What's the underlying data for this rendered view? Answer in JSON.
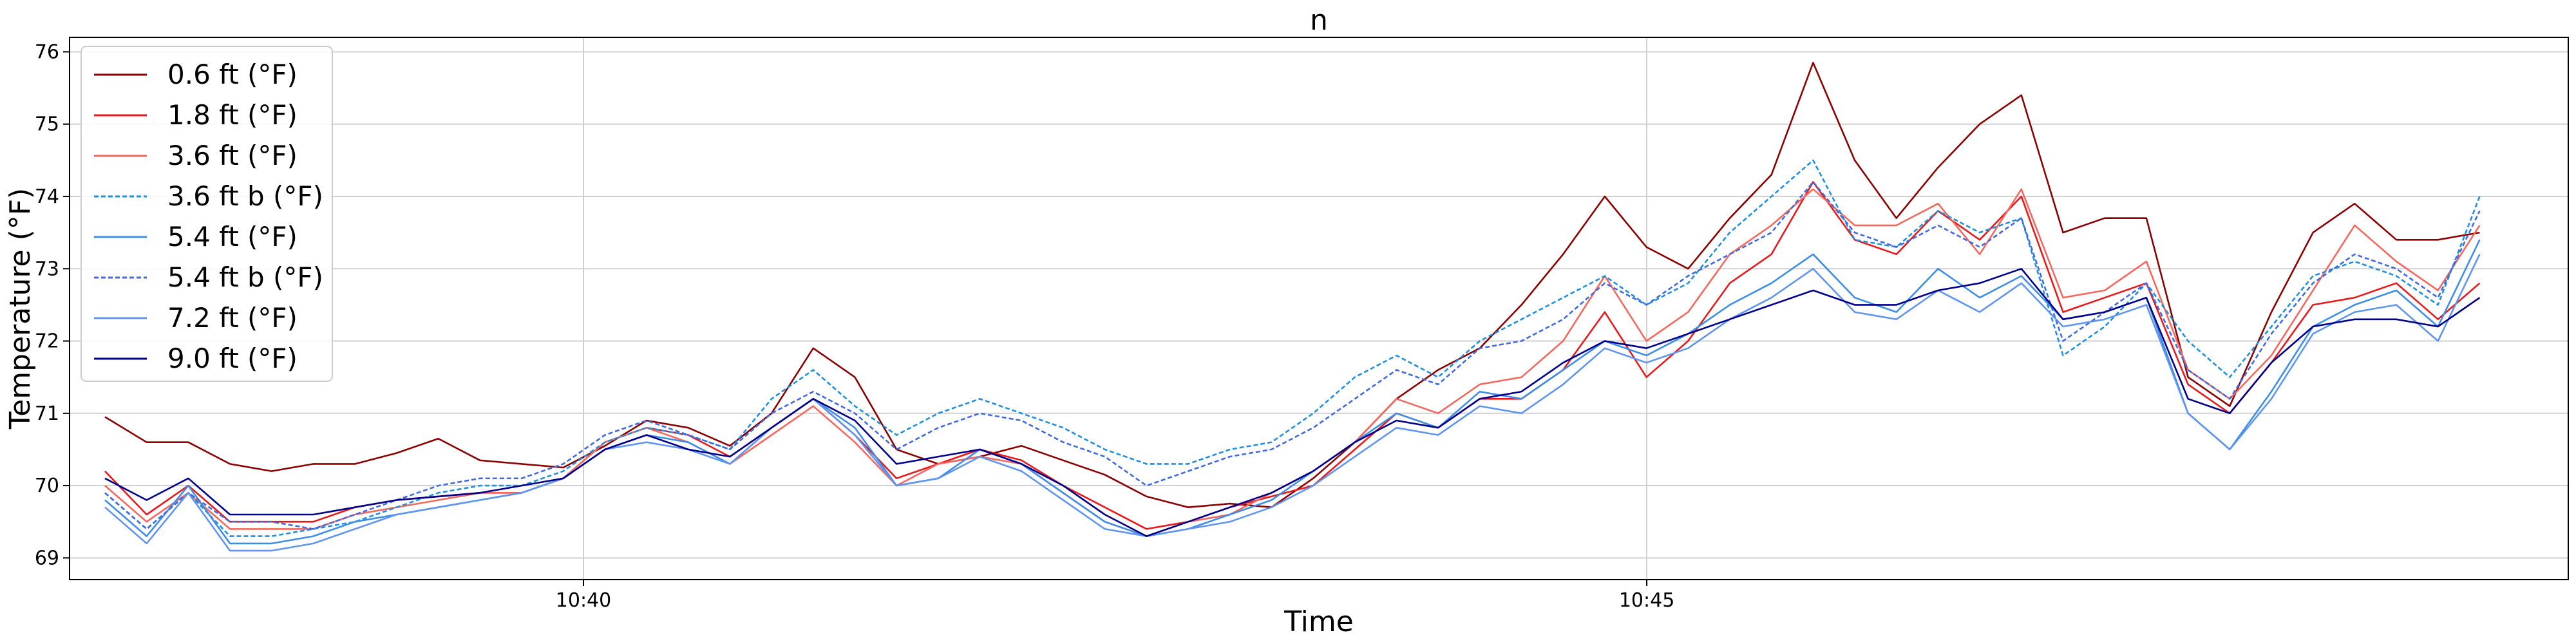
{
  "chart_data": {
    "type": "line",
    "title": "n",
    "xlabel": "Time",
    "ylabel": "Temperature (°F)",
    "xticks": [
      "10:40",
      "10:45"
    ],
    "x_start": "10:37:45",
    "x_end": "10:48:55",
    "xlim": [
      "10:37:35",
      "10:49:20"
    ],
    "ylim": [
      68.7,
      76.2
    ],
    "yticks": [
      69,
      70,
      71,
      72,
      73,
      74,
      75,
      76
    ],
    "grid": true,
    "legend_placement": "top-left",
    "series": [
      {
        "name": "0.6 ft (°F)",
        "color": "#8b0000",
        "style": "solid",
        "values": [
          70.95,
          70.6,
          70.6,
          70.3,
          70.2,
          70.3,
          70.3,
          70.45,
          70.65,
          70.35,
          70.3,
          70.25,
          70.55,
          70.9,
          70.8,
          70.55,
          71.0,
          71.9,
          71.5,
          70.5,
          70.3,
          70.4,
          70.55,
          70.35,
          70.15,
          69.85,
          69.7,
          69.75,
          69.7,
          70.1,
          70.6,
          71.2,
          71.6,
          71.9,
          72.5,
          73.2,
          74.0,
          73.3,
          73.0,
          73.7,
          74.3,
          75.85,
          74.5,
          73.7,
          74.4,
          75.0,
          75.4,
          73.5,
          73.7,
          73.7,
          71.5,
          71.1,
          72.4,
          73.5,
          73.9,
          73.4,
          73.4,
          73.5
        ]
      },
      {
        "name": "1.8 ft (°F)",
        "color": "#e8191b",
        "style": "solid",
        "values": [
          70.2,
          69.6,
          70.0,
          69.5,
          69.5,
          69.5,
          69.7,
          69.8,
          69.85,
          69.9,
          69.9,
          70.1,
          70.6,
          70.8,
          70.7,
          70.4,
          70.8,
          71.2,
          70.7,
          70.1,
          70.3,
          70.5,
          70.35,
          70.0,
          69.7,
          69.4,
          69.5,
          69.7,
          69.85,
          70.0,
          70.5,
          71.0,
          70.8,
          71.2,
          71.2,
          71.6,
          72.4,
          71.5,
          72.0,
          72.8,
          73.2,
          74.2,
          73.4,
          73.2,
          73.8,
          73.4,
          74.0,
          72.4,
          72.6,
          72.8,
          71.4,
          71.0,
          71.7,
          72.5,
          72.6,
          72.8,
          72.3,
          72.8
        ]
      },
      {
        "name": "3.6 ft (°F)",
        "color": "#f6685e",
        "style": "solid",
        "values": [
          70.0,
          69.5,
          69.9,
          69.4,
          69.4,
          69.4,
          69.6,
          69.7,
          69.8,
          69.9,
          69.9,
          70.1,
          70.6,
          70.8,
          70.6,
          70.3,
          70.7,
          71.1,
          70.6,
          70.0,
          70.3,
          70.4,
          70.3,
          69.9,
          69.5,
          69.3,
          69.5,
          69.6,
          69.9,
          70.2,
          70.6,
          71.2,
          71.0,
          71.4,
          71.5,
          72.0,
          72.9,
          72.0,
          72.4,
          73.2,
          73.6,
          74.1,
          73.6,
          73.6,
          73.9,
          73.2,
          74.1,
          72.6,
          72.7,
          73.1,
          71.6,
          71.2,
          71.8,
          72.7,
          73.6,
          73.1,
          72.7,
          73.6
        ]
      },
      {
        "name": "3.6 ft b (°F)",
        "color": "#1e90e0",
        "style": "dashed",
        "values": [
          69.9,
          69.4,
          69.9,
          69.3,
          69.3,
          69.4,
          69.5,
          69.7,
          69.9,
          70.0,
          70.0,
          70.2,
          70.6,
          70.8,
          70.7,
          70.5,
          71.2,
          71.6,
          71.1,
          70.7,
          71.0,
          71.2,
          71.0,
          70.8,
          70.5,
          70.3,
          70.3,
          70.5,
          70.6,
          71.0,
          71.5,
          71.8,
          71.5,
          72.0,
          72.3,
          72.6,
          72.9,
          72.5,
          72.8,
          73.5,
          74.0,
          74.5,
          73.4,
          73.3,
          73.8,
          73.5,
          73.7,
          71.8,
          72.2,
          72.8,
          72.0,
          71.5,
          72.2,
          72.9,
          73.1,
          72.9,
          72.5,
          74.0
        ]
      },
      {
        "name": "5.4 ft (°F)",
        "color": "#3c8ee6",
        "style": "solid",
        "values": [
          69.8,
          69.3,
          70.0,
          69.2,
          69.2,
          69.3,
          69.5,
          69.6,
          69.7,
          69.8,
          69.9,
          70.1,
          70.5,
          70.7,
          70.6,
          70.3,
          70.8,
          71.2,
          70.8,
          70.0,
          70.1,
          70.5,
          70.3,
          69.9,
          69.5,
          69.3,
          69.4,
          69.6,
          69.8,
          70.2,
          70.6,
          71.0,
          70.8,
          71.3,
          71.2,
          71.6,
          72.0,
          71.8,
          72.1,
          72.5,
          72.8,
          73.2,
          72.6,
          72.4,
          73.0,
          72.6,
          72.9,
          72.3,
          72.4,
          72.6,
          71.0,
          70.5,
          71.3,
          72.2,
          72.5,
          72.7,
          72.2,
          73.4
        ]
      },
      {
        "name": "5.4 ft b (°F)",
        "color": "#4169e1",
        "style": "dashed",
        "values": [
          69.9,
          69.4,
          69.9,
          69.5,
          69.5,
          69.4,
          69.6,
          69.8,
          70.0,
          70.1,
          70.1,
          70.3,
          70.7,
          70.9,
          70.7,
          70.5,
          71.0,
          71.3,
          71.0,
          70.5,
          70.8,
          71.0,
          70.9,
          70.6,
          70.4,
          70.0,
          70.2,
          70.4,
          70.5,
          70.8,
          71.2,
          71.6,
          71.4,
          71.9,
          72.0,
          72.3,
          72.8,
          72.5,
          72.9,
          73.2,
          73.5,
          74.2,
          73.5,
          73.3,
          73.6,
          73.3,
          73.7,
          72.0,
          72.4,
          72.8,
          71.6,
          71.2,
          72.1,
          72.8,
          73.2,
          73.0,
          72.6,
          73.8
        ]
      },
      {
        "name": "7.2 ft (°F)",
        "color": "#5f95ef",
        "style": "solid",
        "values": [
          69.7,
          69.2,
          69.9,
          69.1,
          69.1,
          69.2,
          69.4,
          69.6,
          69.7,
          69.8,
          69.9,
          70.1,
          70.5,
          70.6,
          70.5,
          70.3,
          70.8,
          71.2,
          70.7,
          70.0,
          70.1,
          70.4,
          70.2,
          69.8,
          69.4,
          69.3,
          69.4,
          69.5,
          69.7,
          70.0,
          70.4,
          70.8,
          70.7,
          71.1,
          71.0,
          71.4,
          71.9,
          71.7,
          71.9,
          72.3,
          72.6,
          73.0,
          72.4,
          72.3,
          72.7,
          72.4,
          72.8,
          72.2,
          72.3,
          72.5,
          71.0,
          70.5,
          71.2,
          72.1,
          72.4,
          72.5,
          72.0,
          73.2
        ]
      },
      {
        "name": "9.0 ft (°F)",
        "color": "#00008b",
        "style": "solid",
        "values": [
          70.1,
          69.8,
          70.1,
          69.6,
          69.6,
          69.6,
          69.7,
          69.8,
          69.85,
          69.9,
          70.0,
          70.1,
          70.5,
          70.7,
          70.5,
          70.4,
          70.8,
          71.2,
          70.9,
          70.3,
          70.4,
          70.5,
          70.3,
          70.0,
          69.6,
          69.3,
          69.5,
          69.7,
          69.9,
          70.2,
          70.6,
          70.9,
          70.8,
          71.2,
          71.3,
          71.7,
          72.0,
          71.9,
          72.1,
          72.3,
          72.5,
          72.7,
          72.5,
          72.5,
          72.7,
          72.8,
          73.0,
          72.3,
          72.4,
          72.6,
          71.2,
          71.0,
          71.7,
          72.2,
          72.3,
          72.3,
          72.2,
          72.6
        ]
      }
    ]
  }
}
